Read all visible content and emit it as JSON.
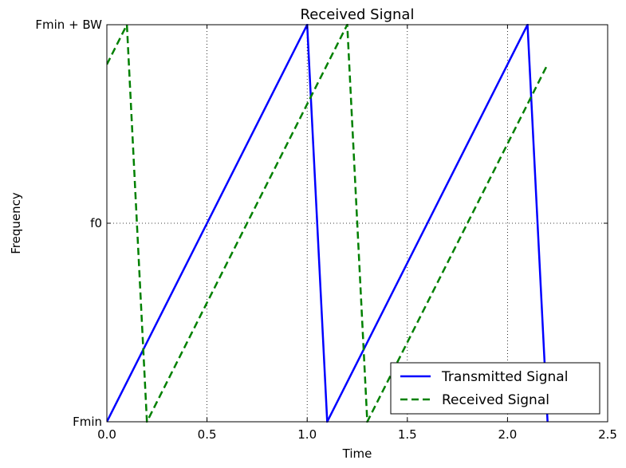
{
  "chart_data": {
    "type": "line",
    "title": "Received Signal",
    "xlabel": "Time",
    "ylabel": "Frequency",
    "xlim": [
      0,
      2.5
    ],
    "ylim": [
      0,
      1
    ],
    "grid": true,
    "grid_style": "dotted",
    "legend_position": "lower-right",
    "xticks": [
      {
        "value": 0,
        "label": "0.0"
      },
      {
        "value": 0.5,
        "label": "0.5"
      },
      {
        "value": 1.0,
        "label": "1.0"
      },
      {
        "value": 1.5,
        "label": "1.5"
      },
      {
        "value": 2.0,
        "label": "2.0"
      },
      {
        "value": 2.5,
        "label": "2.5"
      }
    ],
    "yticks": [
      {
        "value": 0,
        "label": "Fmin"
      },
      {
        "value": 0.5,
        "label": "f0"
      },
      {
        "value": 1,
        "label": "Fmin + BW"
      }
    ],
    "series": [
      {
        "name": "Transmitted Signal",
        "color": "#0000ff",
        "style": "solid",
        "x": [
          0.0,
          1.0,
          1.1,
          2.1,
          2.2
        ],
        "y": [
          0.0,
          1.0,
          0.0,
          1.0,
          0.0
        ]
      },
      {
        "name": "Received Signal",
        "color": "#008000",
        "style": "dashed",
        "x": [
          0.0,
          0.1,
          0.2,
          1.2,
          1.3,
          2.2
        ],
        "y": [
          0.9,
          1.0,
          0.0,
          1.0,
          0.0,
          0.9
        ]
      }
    ]
  }
}
